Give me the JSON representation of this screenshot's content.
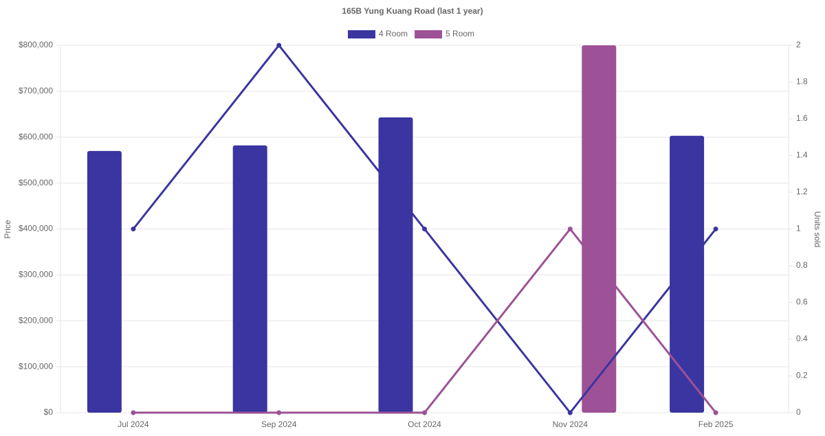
{
  "chart_data": {
    "type": "bar-line",
    "title": "165B Yung Kuang Road (last 1 year)",
    "y_label": "Price",
    "y2_label": "Units sold",
    "categories": [
      "Jul 2024",
      "Sep 2024",
      "Oct 2024",
      "Nov 2024",
      "Feb 2025"
    ],
    "series": [
      {
        "name": "4 Room",
        "color": "#3a35a0",
        "values": [
          570000,
          582000,
          643000,
          null,
          603000
        ],
        "units_sold": [
          1,
          2,
          1,
          0,
          1
        ]
      },
      {
        "name": "5 Room",
        "color": "#9d5196",
        "values": [
          null,
          null,
          null,
          800000,
          null
        ],
        "units_sold": [
          0,
          0,
          0,
          1,
          0
        ]
      }
    ],
    "ylim": [
      0,
      800000
    ],
    "yticks": [
      {
        "value": 0,
        "label": "$0"
      },
      {
        "value": 100000,
        "label": "$100,000"
      },
      {
        "value": 200000,
        "label": "$200,000"
      },
      {
        "value": 300000,
        "label": "$300,000"
      },
      {
        "value": 400000,
        "label": "$400,000"
      },
      {
        "value": 500000,
        "label": "$500,000"
      },
      {
        "value": 600000,
        "label": "$600,000"
      },
      {
        "value": 700000,
        "label": "$700,000"
      },
      {
        "value": 800000,
        "label": "$800,000"
      }
    ],
    "y2lim": [
      0,
      2
    ],
    "y2ticks": [
      0,
      0.2,
      0.4,
      0.6,
      0.8,
      1,
      1.2,
      1.4,
      1.6,
      1.8,
      2
    ],
    "grid": true,
    "legend": "top"
  }
}
